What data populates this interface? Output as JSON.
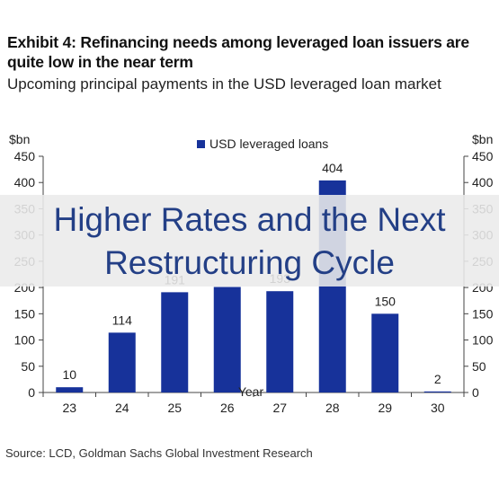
{
  "header": {
    "title": "Exhibit 4: Refinancing needs among leveraged loan issuers are quite low in the near term",
    "subtitle": "Upcoming principal payments in the USD leveraged loan market"
  },
  "overlay": {
    "line1": "Higher Rates and the Next",
    "line2": "Restructuring Cycle",
    "text_color": "#233f86"
  },
  "footer": {
    "source": "Source: LCD, Goldman Sachs Global Investment Research"
  },
  "chart_data": {
    "type": "bar",
    "unit_left": "$bn",
    "unit_right": "$bn",
    "xlabel": "Year",
    "ylabel": "",
    "ylim": [
      0,
      450
    ],
    "yticks": [
      0,
      50,
      100,
      150,
      200,
      250,
      300,
      350,
      400,
      450
    ],
    "grid": false,
    "legend_position": "top-center",
    "bar_color": "#17329a",
    "categories": [
      "23",
      "24",
      "25",
      "26",
      "27",
      "28",
      "29",
      "30"
    ],
    "series": [
      {
        "name": "USD leveraged loans",
        "values": [
          10,
          114,
          191,
          201,
          193,
          404,
          150,
          2
        ],
        "labels": [
          "10",
          "114",
          "191",
          "",
          "193",
          "404",
          "150",
          "2"
        ]
      }
    ]
  }
}
